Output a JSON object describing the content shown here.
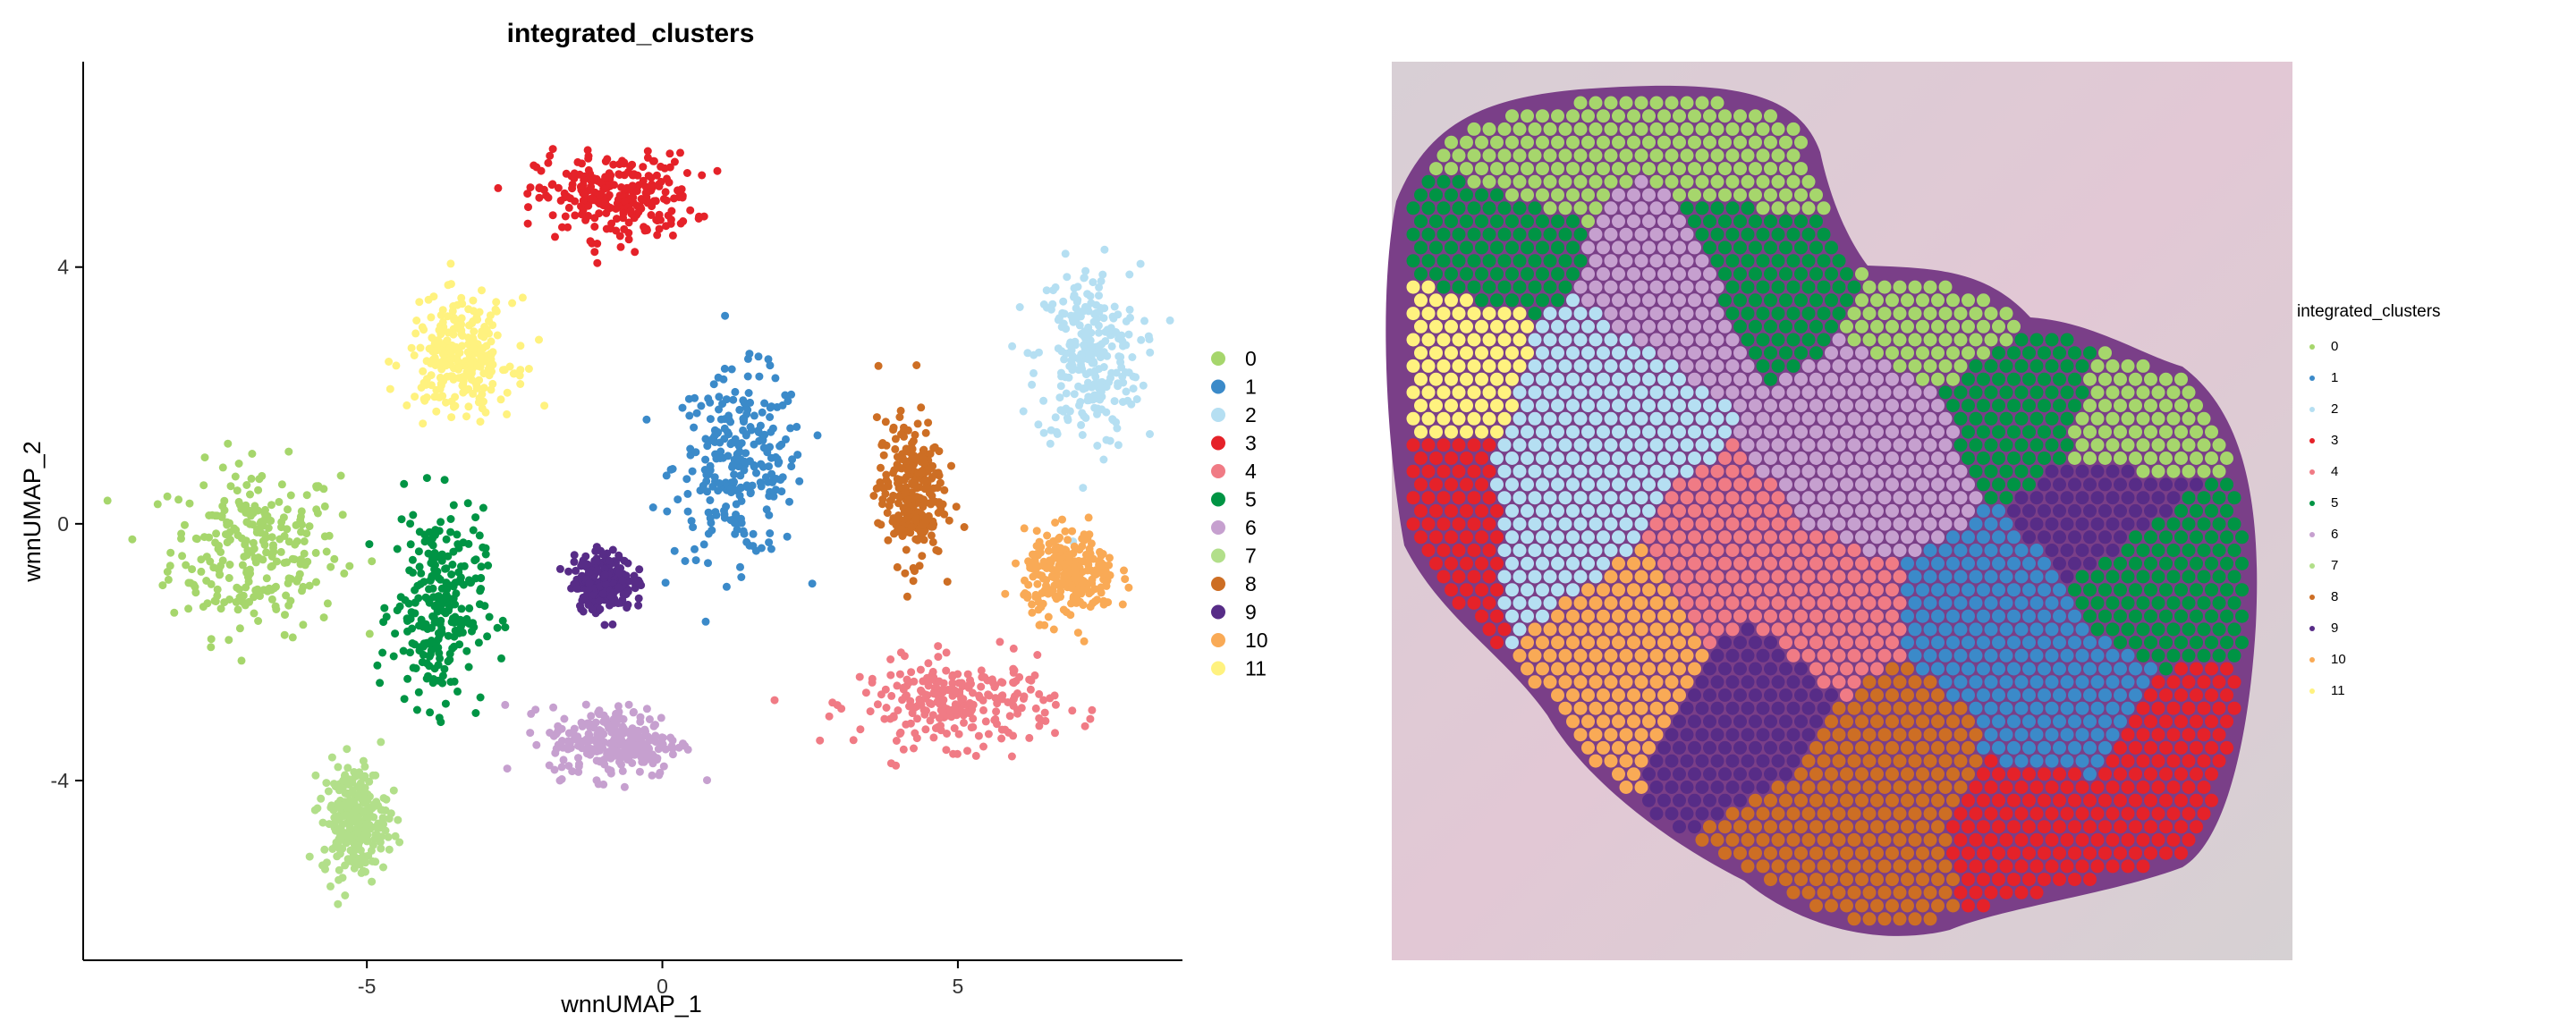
{
  "chart_data": [
    {
      "type": "scatter",
      "title": "integrated_clusters",
      "xlabel": "wnnUMAP_1",
      "ylabel": "wnnUMAP_2",
      "xlim": [
        -9.8,
        8.8
      ],
      "ylim": [
        -6.8,
        7.2
      ],
      "xticks": [
        -5,
        0,
        5
      ],
      "yticks": [
        -4,
        0,
        4
      ],
      "grid": false,
      "legend": "right",
      "colors": {
        "0": "#a6d66c",
        "1": "#3b8ac9",
        "2": "#b5dff2",
        "3": "#e52229",
        "4": "#f07b85",
        "5": "#009444",
        "6": "#c6a0cf",
        "7": "#b2df8a",
        "8": "#cd6e24",
        "9": "#572c87",
        "10": "#f9aa56",
        "11": "#fff27f"
      },
      "series": [
        {
          "name": "0",
          "center": [
            -6.9,
            -0.4
          ],
          "spread": [
            1.3,
            1.2
          ]
        },
        {
          "name": "1",
          "center": [
            1.3,
            0.9
          ],
          "spread": [
            1.0,
            1.3
          ]
        },
        {
          "name": "2",
          "center": [
            7.2,
            2.6
          ],
          "spread": [
            0.8,
            1.3
          ]
        },
        {
          "name": "3",
          "center": [
            -0.8,
            5.1
          ],
          "spread": [
            1.2,
            0.6
          ]
        },
        {
          "name": "4",
          "center": [
            5.0,
            -2.8
          ],
          "spread": [
            1.5,
            0.6
          ]
        },
        {
          "name": "5",
          "center": [
            -3.8,
            -1.3
          ],
          "spread": [
            0.7,
            1.4
          ]
        },
        {
          "name": "6",
          "center": [
            -0.8,
            -3.4
          ],
          "spread": [
            1.0,
            0.5
          ]
        },
        {
          "name": "7",
          "center": [
            -5.2,
            -4.6
          ],
          "spread": [
            0.5,
            0.8
          ]
        },
        {
          "name": "8",
          "center": [
            4.2,
            0.5
          ],
          "spread": [
            0.5,
            1.0
          ]
        },
        {
          "name": "9",
          "center": [
            -1.0,
            -0.9
          ],
          "spread": [
            0.45,
            0.4
          ]
        },
        {
          "name": "10",
          "center": [
            6.9,
            -0.8
          ],
          "spread": [
            0.7,
            0.6
          ]
        },
        {
          "name": "11",
          "center": [
            -3.4,
            2.6
          ],
          "spread": [
            0.8,
            0.8
          ]
        }
      ]
    },
    {
      "type": "scatter",
      "subtype": "spatial-tissue-spots",
      "legend_title": "integrated_clusters",
      "legend": "right",
      "categories": [
        "0",
        "1",
        "2",
        "3",
        "4",
        "5",
        "6",
        "7",
        "8",
        "9",
        "10",
        "11"
      ],
      "colors": {
        "0": "#a6d66c",
        "1": "#3b8ac9",
        "2": "#b5dff2",
        "3": "#e52229",
        "4": "#f07b85",
        "5": "#009444",
        "6": "#c6a0cf",
        "7": "#b2df8a",
        "8": "#cd6e24",
        "9": "#572c87",
        "10": "#f9aa56",
        "11": "#fff27f"
      },
      "background": "H&E stained tissue section"
    }
  ]
}
